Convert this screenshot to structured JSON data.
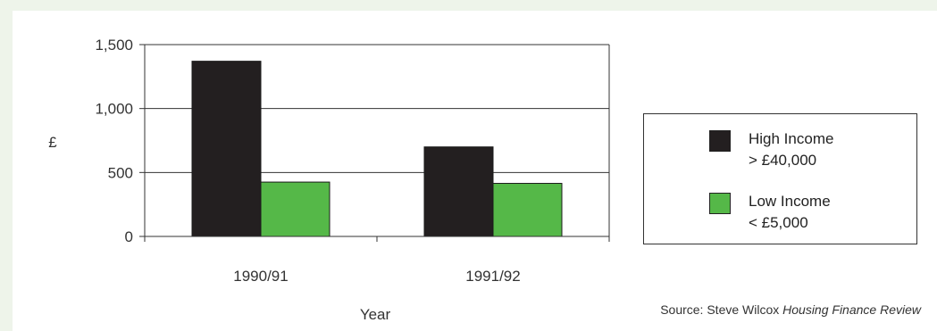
{
  "chart_data": {
    "type": "bar",
    "categories": [
      "1990/91",
      "1991/92"
    ],
    "series": [
      {
        "name": "High Income > £40,000",
        "label_lines": [
          "High Income",
          "> £40,000"
        ],
        "values": [
          1370,
          700
        ],
        "color": "#231f20"
      },
      {
        "name": "Low Income < £5,000",
        "label_lines": [
          "Low Income",
          "< £5,000"
        ],
        "values": [
          425,
          415
        ],
        "color": "#55b848"
      }
    ],
    "title": "",
    "xlabel": "Year",
    "ylabel": "£",
    "ylim": [
      0,
      1500
    ],
    "yticks": [
      0,
      500,
      1000,
      1500
    ],
    "ytick_labels": [
      "0",
      "500",
      "1,000",
      "1,500"
    ],
    "grid": "horizontal",
    "legend_position": "right"
  },
  "source": {
    "prefix": "Source: Steve Wilcox ",
    "publication": "Housing Finance Review"
  },
  "colors": {
    "background": "#eef4ea",
    "panel": "#ffffff",
    "axis": "#333333"
  }
}
